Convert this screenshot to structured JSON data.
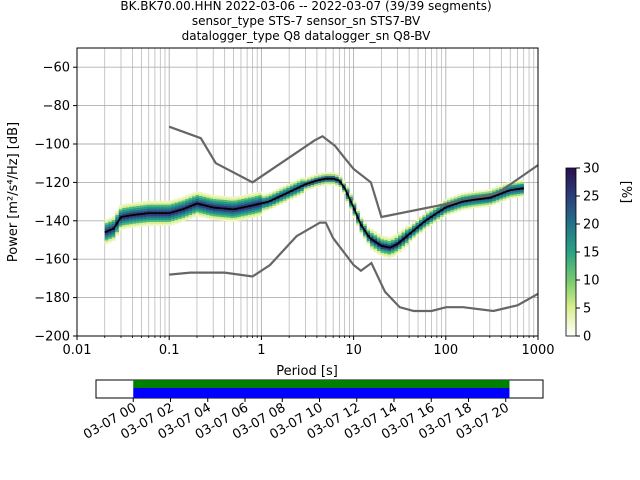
{
  "title_lines": [
    "BK.BK70.00.HHN   2022-03-06 -- 2022-03-07  (39/39 segments)",
    "sensor_type STS-7 sensor_sn STS7-BV",
    "datalogger_type Q8 datalogger_sn Q8-BV"
  ],
  "chart_data": [
    {
      "type": "heatmap",
      "xlabel": "Period [s]",
      "ylabel": "Power [m²/s⁴/Hz] [dB]",
      "x_scale": "log",
      "xlim": [
        0.01,
        1000
      ],
      "ylim": [
        -200,
        -50
      ],
      "x_tick_labels": [
        "0.01",
        "0.1",
        "1",
        "10",
        "100",
        "1000"
      ],
      "y_ticks": [
        -200,
        -180,
        -160,
        -140,
        -120,
        -100,
        -80,
        -60
      ],
      "y_tick_labels": [
        "−200",
        "−180",
        "−160",
        "−140",
        "−120",
        "−100",
        "−80",
        "−60"
      ],
      "grid": true,
      "mode_line": {
        "name": "mode",
        "x": [
          0.02,
          0.025,
          0.03,
          0.04,
          0.06,
          0.1,
          0.14,
          0.2,
          0.3,
          0.5,
          0.8,
          1.2,
          2,
          3,
          4,
          5,
          6,
          7,
          8,
          10,
          12,
          15,
          20,
          25,
          30,
          40,
          60,
          80,
          100,
          150,
          200,
          300,
          500,
          700
        ],
        "y": [
          -146,
          -144,
          -138,
          -137,
          -136,
          -136,
          -134,
          -131,
          -133,
          -134,
          -132,
          -130,
          -125,
          -121,
          -119,
          -118,
          -118,
          -119,
          -123,
          -133,
          -142,
          -149,
          -153,
          -154,
          -152,
          -147,
          -140,
          -136,
          -133,
          -130,
          -129,
          -128,
          -124,
          -123
        ]
      },
      "noise_models": [
        {
          "name": "NHNM",
          "x": [
            0.1,
            0.22,
            0.32,
            0.8,
            3.8,
            4.6,
            6.3,
            7.9,
            10,
            15.4,
            20,
            354.8,
            1000
          ],
          "y": [
            -91,
            -97,
            -110,
            -120,
            -98,
            -96,
            -101,
            -107,
            -113,
            -120,
            -138,
            -126,
            -111
          ]
        },
        {
          "name": "NLNM",
          "x": [
            0.1,
            0.17,
            0.4,
            0.8,
            1.24,
            2.4,
            4.3,
            5,
            6,
            10,
            12,
            15.6,
            21.9,
            31.6,
            45,
            70,
            101,
            154,
            328,
            600,
            1000
          ],
          "y": [
            -168,
            -167,
            -167,
            -169,
            -163,
            -148,
            -141,
            -141,
            -149,
            -163,
            -166,
            -162,
            -177,
            -185,
            -187,
            -187,
            -185,
            -185,
            -187,
            -184,
            -178
          ]
        }
      ],
      "colorbar": {
        "label": "[%]",
        "range": [
          0,
          30
        ],
        "ticks": [
          "0",
          "5",
          "10",
          "15",
          "20",
          "25",
          "30"
        ],
        "colormap_stops": [
          "#ffffff",
          "#d8ef8e",
          "#79c96f",
          "#2aa283",
          "#247189",
          "#2b3f7a",
          "#2b0f4f"
        ]
      }
    },
    {
      "type": "bar",
      "title": "",
      "x_tick_labels": [
        "03-07 00",
        "03-07 02",
        "03-07 04",
        "03-07 06",
        "03-07 08",
        "03-07 10",
        "03-07 12",
        "03-07 14",
        "03-07 16",
        "03-07 18",
        "03-07 20"
      ],
      "xlim_hours": [
        -2,
        22
      ],
      "bars": [
        {
          "color": "#008000",
          "start_hour": 0,
          "end_hour": 20.2
        },
        {
          "color": "#0000ff",
          "start_hour": 0,
          "end_hour": 20.2
        }
      ]
    }
  ]
}
